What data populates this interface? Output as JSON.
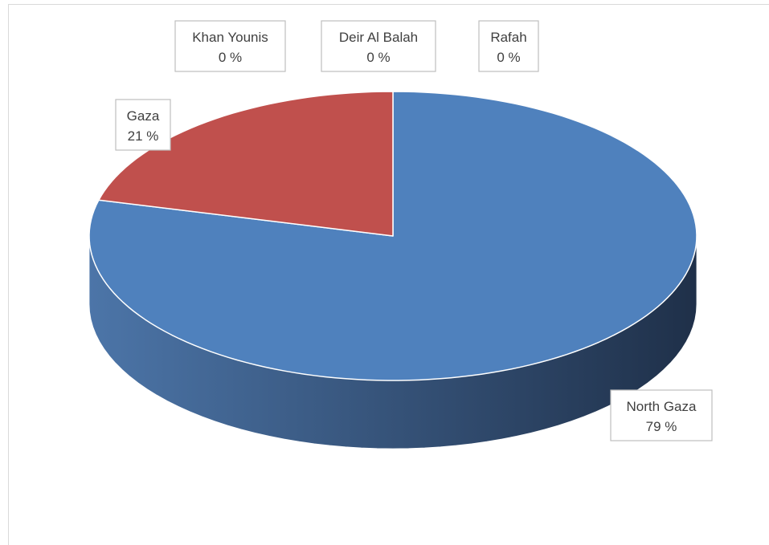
{
  "chart_data": {
    "type": "pie",
    "style": "3d-pie",
    "categories": [
      "North Gaza",
      "Gaza",
      "Khan Younis",
      "Deir Al Balah",
      "Rafah"
    ],
    "values": [
      79,
      21,
      0,
      0,
      0
    ],
    "value_labels": [
      "79 %",
      "21 %",
      "0 %",
      "0 %",
      "0 %"
    ],
    "colors": {
      "North Gaza": "#4f81bd",
      "Gaza": "#c0504d"
    },
    "side_colors": {
      "North Gaza_dark": "#1f3049",
      "North Gaza_light": "#4c75a8",
      "Gaza_dark": "#8c3836"
    },
    "title": "",
    "legend": "none"
  }
}
